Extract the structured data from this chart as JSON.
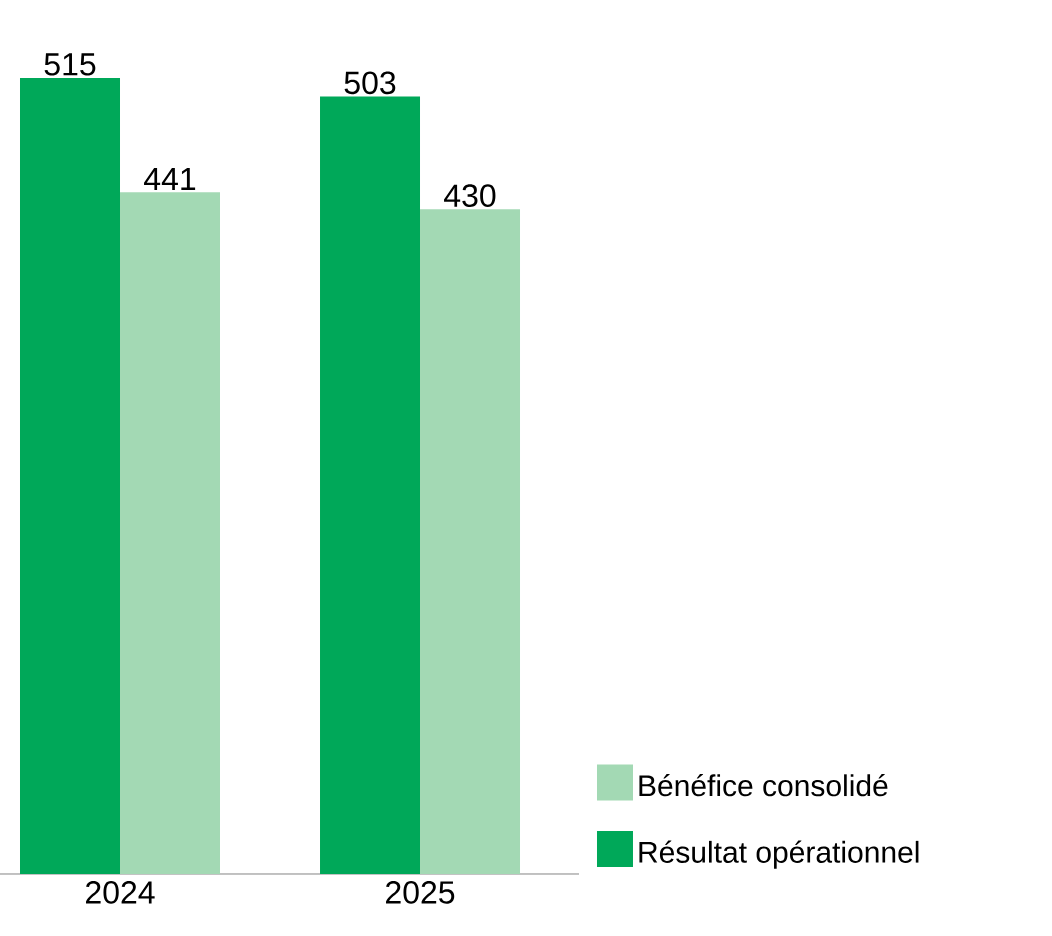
{
  "chart_data": {
    "type": "bar",
    "categories": [
      "2024",
      "2025"
    ],
    "series": [
      {
        "name": "Résultat opérationnel",
        "color": "#00a859",
        "values": [
          515,
          503
        ]
      },
      {
        "name": "Bénéfice consolidé",
        "color": "#a3d9b4",
        "values": [
          441,
          430
        ]
      }
    ],
    "data_labels": true,
    "legend": "bottom right"
  }
}
